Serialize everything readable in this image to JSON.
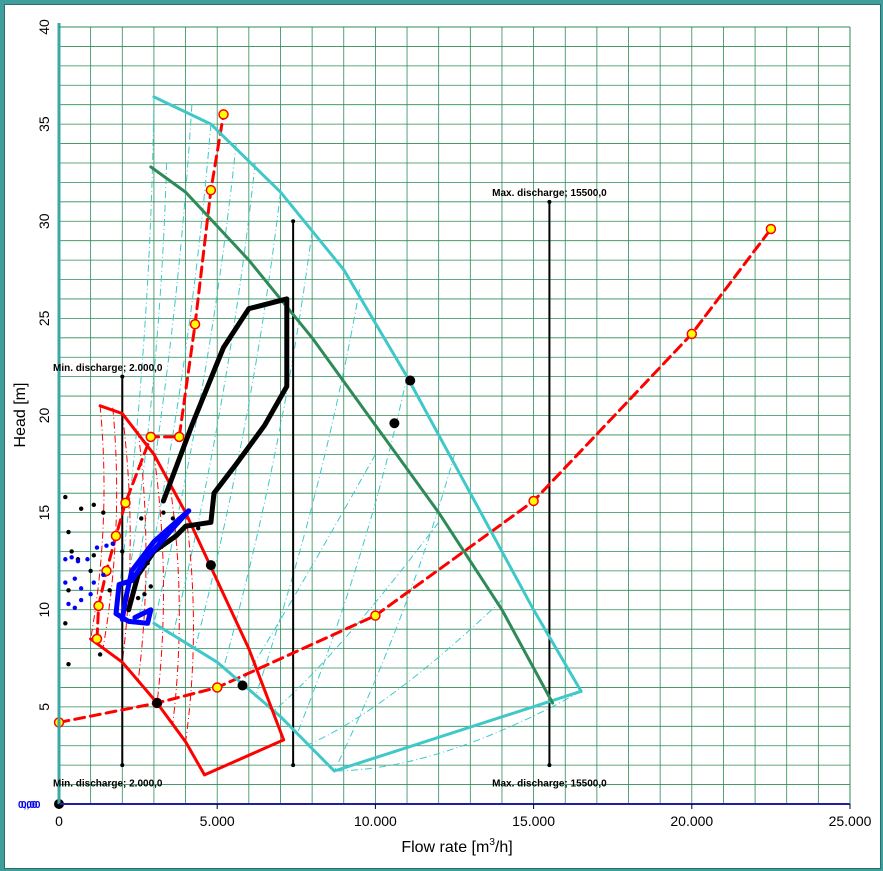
{
  "chart_data": {
    "type": "scatter",
    "xlabel": "Flow rate [m",
    "xlabel_sup": "3",
    "xlabel_tail": "/h]",
    "ylabel": "Head [m]",
    "xlim": [
      0,
      25000
    ],
    "ylim": [
      0,
      40
    ],
    "x_ticks": [
      0,
      5000,
      10000,
      15000,
      20000,
      25000
    ],
    "x_tick_labels": [
      "0",
      "5.000",
      "10.000",
      "15.000",
      "20.000",
      "25.000"
    ],
    "y_ticks": [
      5,
      10,
      15,
      20,
      25,
      30,
      35,
      40
    ],
    "y_tick_labels": [
      "5",
      "10",
      "15",
      "20",
      "25",
      "30",
      "35",
      "40"
    ],
    "origin_labels": [
      "0,00",
      "0,00"
    ],
    "grid": true,
    "colors": {
      "grid": "#2e8b57",
      "system_curve": "#ff0000",
      "envelope_light": "#40c8c8",
      "envelope_dark": "#2e8b57",
      "operating_points": "#000000",
      "measured_points": "#0000ff",
      "marker_fill": "#ffff00"
    },
    "annotations": [
      {
        "text": "Min. discharge; 2.000,0",
        "x": 2000,
        "y": 22.3
      },
      {
        "text": "Min. discharge; 2.000,0",
        "x": 2000,
        "y": 0.9
      },
      {
        "text": "Max. discharge; 15500,0",
        "x": 15500,
        "y": 31.3
      },
      {
        "text": "Max. discharge; 15500,0",
        "x": 15500,
        "y": 0.9
      }
    ],
    "vertical_limits": [
      {
        "x": 2000,
        "y": [
          2,
          22
        ]
      },
      {
        "x": 7400,
        "y": [
          2,
          30
        ]
      },
      {
        "x": 15500,
        "y": [
          2,
          31
        ]
      }
    ],
    "series": [
      {
        "role": "system_curve_steep",
        "style": "dashed",
        "points": [
          [
            1200,
            8.5
          ],
          [
            1250,
            10.2
          ],
          [
            1500,
            12.0
          ],
          [
            1800,
            13.8
          ],
          [
            2100,
            15.5
          ],
          [
            2900,
            18.9
          ],
          [
            3800,
            18.9
          ],
          [
            4300,
            24.7
          ],
          [
            4800,
            31.6
          ],
          [
            5200,
            35.5
          ]
        ]
      },
      {
        "role": "system_curve_flat",
        "style": "dashed",
        "points": [
          [
            0,
            4.2
          ],
          [
            3100,
            5.2
          ],
          [
            5000,
            6.0
          ],
          [
            10000,
            9.7
          ],
          [
            15000,
            15.6
          ],
          [
            20000,
            24.2
          ],
          [
            22500,
            29.6
          ]
        ]
      },
      {
        "role": "pump_envelope_light_outer",
        "style": "solid",
        "points": [
          [
            3000,
            36.4
          ],
          [
            4800,
            35.0
          ],
          [
            7000,
            31.5
          ],
          [
            9000,
            27.5
          ],
          [
            11000,
            22.0
          ],
          [
            13000,
            16.0
          ],
          [
            15000,
            10.0
          ],
          [
            16500,
            5.8
          ]
        ]
      },
      {
        "role": "pump_envelope_light_lower",
        "style": "solid",
        "points": [
          [
            3000,
            9.3
          ],
          [
            5000,
            7.3
          ],
          [
            7000,
            4.5
          ],
          [
            8700,
            1.7
          ],
          [
            16500,
            5.8
          ]
        ]
      },
      {
        "role": "pump_envelope_dark",
        "style": "solid",
        "points": [
          [
            2900,
            32.8
          ],
          [
            4000,
            31.5
          ],
          [
            6000,
            28.0
          ],
          [
            8000,
            24.0
          ],
          [
            10000,
            19.5
          ],
          [
            12000,
            15.0
          ],
          [
            14000,
            10.0
          ],
          [
            15600,
            5.2
          ]
        ]
      },
      {
        "role": "pump_envelope_red",
        "style": "solid",
        "points": [
          [
            1300,
            20.5
          ],
          [
            2000,
            20.1
          ],
          [
            3000,
            18.0
          ],
          [
            4000,
            15.0
          ],
          [
            5000,
            11.5
          ],
          [
            6000,
            8.0
          ],
          [
            7100,
            3.3
          ]
        ]
      },
      {
        "role": "pump_envelope_red_lower",
        "style": "solid",
        "points": [
          [
            1000,
            8.5
          ],
          [
            2000,
            7.3
          ],
          [
            3100,
            5.2
          ],
          [
            4000,
            3.2
          ],
          [
            4600,
            1.5
          ],
          [
            7100,
            3.3
          ]
        ]
      },
      {
        "role": "operating_loop",
        "style": "thick",
        "points": [
          [
            3300,
            15.6
          ],
          [
            4200,
            19.5
          ],
          [
            5200,
            23.5
          ],
          [
            6000,
            25.5
          ],
          [
            7200,
            26.0
          ],
          [
            7200,
            21.5
          ],
          [
            6500,
            19.5
          ],
          [
            5600,
            17.5
          ],
          [
            4900,
            16.0
          ],
          [
            4800,
            14.5
          ],
          [
            4000,
            14.3
          ],
          [
            3700,
            13.8
          ],
          [
            3000,
            13.0
          ],
          [
            2500,
            11.8
          ],
          [
            2200,
            10.0
          ]
        ]
      },
      {
        "role": "measured_loop",
        "style": "thick",
        "points": [
          [
            2000,
            9.5
          ],
          [
            2100,
            10.5
          ],
          [
            2300,
            12.0
          ],
          [
            3000,
            13.5
          ],
          [
            4100,
            15.1
          ],
          [
            3500,
            14.0
          ],
          [
            2800,
            12.7
          ],
          [
            2300,
            11.5
          ],
          [
            1900,
            11.3
          ],
          [
            1800,
            9.8
          ],
          [
            2200,
            9.4
          ],
          [
            2800,
            9.3
          ],
          [
            2900,
            10.0
          ],
          [
            2400,
            9.6
          ]
        ]
      },
      {
        "role": "operating_points_large",
        "style": "markers",
        "points": [
          [
            0,
            0
          ],
          [
            3100,
            5.2
          ],
          [
            5800,
            6.1
          ],
          [
            4800,
            12.3
          ],
          [
            10600,
            19.6
          ],
          [
            11100,
            21.8
          ]
        ]
      },
      {
        "role": "operating_points_small",
        "style": "markers",
        "points": [
          [
            200,
            15.8
          ],
          [
            300,
            14.0
          ],
          [
            400,
            13.0
          ],
          [
            700,
            15.2
          ],
          [
            600,
            12.6
          ],
          [
            1100,
            15.4
          ],
          [
            1400,
            15.0
          ],
          [
            1100,
            12.8
          ],
          [
            300,
            11.0
          ],
          [
            200,
            9.3
          ],
          [
            300,
            7.2
          ],
          [
            1300,
            7.7
          ],
          [
            1600,
            11.0
          ],
          [
            2600,
            14.7
          ],
          [
            2800,
            12.4
          ],
          [
            2900,
            11.2
          ],
          [
            2700,
            10.8
          ],
          [
            2500,
            10.6
          ],
          [
            3300,
            15.0
          ],
          [
            3600,
            14.7
          ],
          [
            4400,
            14.2
          ],
          [
            2000,
            13.0
          ],
          [
            1000,
            12.0
          ]
        ]
      },
      {
        "role": "measured_points_small",
        "style": "markers",
        "points": [
          [
            200,
            12.6
          ],
          [
            400,
            12.7
          ],
          [
            600,
            12.5
          ],
          [
            900,
            12.6
          ],
          [
            200,
            11.4
          ],
          [
            500,
            11.6
          ],
          [
            700,
            11.1
          ],
          [
            300,
            10.3
          ],
          [
            500,
            10.1
          ],
          [
            700,
            10.5
          ],
          [
            1000,
            10.8
          ],
          [
            1200,
            13.2
          ],
          [
            1500,
            13.3
          ],
          [
            1700,
            13.4
          ],
          [
            1400,
            11.8
          ],
          [
            1100,
            11.4
          ]
        ]
      }
    ]
  }
}
